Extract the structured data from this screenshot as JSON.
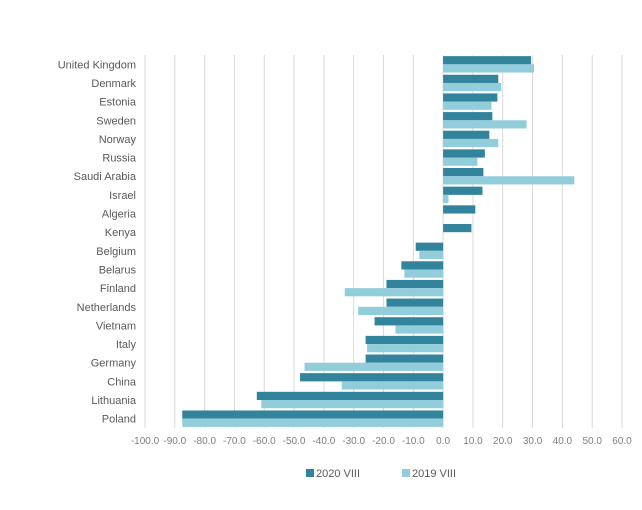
{
  "chart_data": {
    "type": "bar",
    "orientation": "horizontal",
    "categories": [
      "United Kingdom",
      "Denmark",
      "Estonia",
      "Sweden",
      "Norway",
      "Russia",
      "Saudi Arabia",
      "Israel",
      "Algeria",
      "Kenya",
      "Belgium",
      "Belarus",
      "Finland",
      "Netherlands",
      "Vietnam",
      "Italy",
      "Germany",
      "China",
      "Lithuania",
      "Poland"
    ],
    "series": [
      {
        "name": "2020 VIII",
        "color": "#31849b",
        "values": [
          29.5,
          18.5,
          18.2,
          16.5,
          15.5,
          14.0,
          13.5,
          13.2,
          10.8,
          9.5,
          -9.2,
          -14.0,
          -19.0,
          -19.0,
          -23.0,
          -26.0,
          -26.0,
          -48.0,
          -62.5,
          -87.5
        ]
      },
      {
        "name": "2019 VIII",
        "color": "#92cddc",
        "values": [
          30.5,
          19.5,
          16.2,
          28.0,
          18.5,
          11.5,
          44.0,
          1.8,
          0,
          0,
          -8.0,
          -13.0,
          -33.0,
          -28.5,
          -16.0,
          -25.5,
          -46.5,
          -34.0,
          -61.0,
          -87.5
        ]
      }
    ],
    "xlim": [
      -100,
      60
    ],
    "xticks": [
      -100,
      -90,
      -80,
      -70,
      -60,
      -50,
      -40,
      -30,
      -20,
      -10,
      0,
      10,
      20,
      30,
      40,
      50,
      60
    ],
    "xtick_labels": [
      "-100.0",
      "-90.0",
      "-80.0",
      "-70.0",
      "-60.0",
      "-50.0",
      "-40.0",
      "-30.0",
      "-20.0",
      "-10.0",
      "0.0",
      "10.0",
      "20.0",
      "30.0",
      "40.0",
      "50.0",
      "60.0"
    ],
    "grid": "vertical",
    "legend_position": "bottom"
  }
}
